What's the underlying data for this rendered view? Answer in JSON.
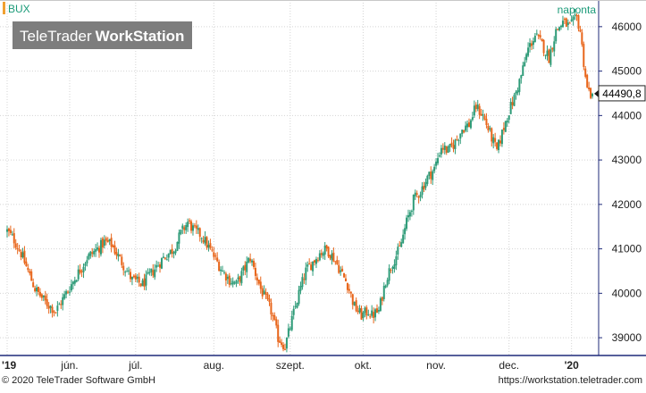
{
  "header": {
    "symbol": "BUX",
    "frequency": "naponta",
    "watermark_light": "TeleTrader",
    "watermark_bold": "WorkStation"
  },
  "footer": {
    "copyright": "© 2020 TeleTrader Software GmbH",
    "url": "https://workstation.teletrader.com"
  },
  "colors": {
    "up": "#2e9b78",
    "down": "#e8651a",
    "accent_green": "#1a9a78",
    "bux_tag": "#f0a030",
    "axis_border": "#1f2a7a",
    "grid": "#d4d4d4"
  },
  "chart_data": {
    "type": "candlestick",
    "title": "BUX",
    "frequency": "naponta",
    "y_range": [
      38600,
      46600
    ],
    "y_ticks": [
      39000,
      40000,
      41000,
      42000,
      43000,
      44000,
      45000,
      46000
    ],
    "y_tick_labels": [
      "39000",
      "40000",
      "41000",
      "42000",
      "43000",
      "44000",
      "45000",
      "46000"
    ],
    "x_ticks": [
      "'19",
      "jún.",
      "júl.",
      "aug.",
      "szept.",
      "okt.",
      "nov.",
      "dec.",
      "'20"
    ],
    "last_value_label": "44490,8",
    "last_value": 44490.8,
    "grid": true,
    "close_path": [
      [
        0,
        41400
      ],
      [
        4,
        41200
      ],
      [
        8,
        40900
      ],
      [
        12,
        40500
      ],
      [
        16,
        40100
      ],
      [
        22,
        39800
      ],
      [
        28,
        39600
      ],
      [
        34,
        40000
      ],
      [
        40,
        40400
      ],
      [
        46,
        40800
      ],
      [
        52,
        41000
      ],
      [
        56,
        41150
      ],
      [
        60,
        41100
      ],
      [
        66,
        40700
      ],
      [
        72,
        40300
      ],
      [
        78,
        40200
      ],
      [
        84,
        40500
      ],
      [
        90,
        40800
      ],
      [
        96,
        41000
      ],
      [
        100,
        41350
      ],
      [
        104,
        41600
      ],
      [
        108,
        41400
      ],
      [
        112,
        41300
      ],
      [
        118,
        40900
      ],
      [
        124,
        40500
      ],
      [
        128,
        40300
      ],
      [
        132,
        40200
      ],
      [
        136,
        40500
      ],
      [
        140,
        40800
      ],
      [
        146,
        40100
      ],
      [
        152,
        39600
      ],
      [
        156,
        39000
      ],
      [
        160,
        38800
      ],
      [
        164,
        39400
      ],
      [
        168,
        40000
      ],
      [
        172,
        40500
      ],
      [
        176,
        40700
      ],
      [
        180,
        40900
      ],
      [
        184,
        41000
      ],
      [
        188,
        40800
      ],
      [
        192,
        40500
      ],
      [
        196,
        40200
      ],
      [
        200,
        39700
      ],
      [
        204,
        39500
      ],
      [
        208,
        39600
      ],
      [
        210,
        39500
      ],
      [
        214,
        39600
      ],
      [
        218,
        40300
      ],
      [
        222,
        40700
      ],
      [
        226,
        41000
      ],
      [
        230,
        41600
      ],
      [
        234,
        42100
      ],
      [
        238,
        42300
      ],
      [
        242,
        42600
      ],
      [
        246,
        42800
      ],
      [
        250,
        43300
      ],
      [
        254,
        43200
      ],
      [
        258,
        43400
      ],
      [
        262,
        43700
      ],
      [
        266,
        43800
      ],
      [
        270,
        44200
      ],
      [
        274,
        44000
      ],
      [
        278,
        43600
      ],
      [
        282,
        43200
      ],
      [
        285,
        43600
      ],
      [
        288,
        44000
      ],
      [
        292,
        44400
      ],
      [
        296,
        44900
      ],
      [
        300,
        45500
      ],
      [
        304,
        45800
      ],
      [
        308,
        45600
      ],
      [
        312,
        45300
      ],
      [
        316,
        45900
      ],
      [
        320,
        46100
      ],
      [
        324,
        46000
      ],
      [
        328,
        46200
      ],
      [
        330,
        45900
      ],
      [
        332,
        45200
      ],
      [
        334,
        44600
      ],
      [
        336,
        44490.8
      ]
    ],
    "x_day_range": [
      0,
      337
    ],
    "x_tick_days": [
      0,
      36,
      74,
      119,
      163,
      205,
      247,
      289,
      325
    ]
  }
}
